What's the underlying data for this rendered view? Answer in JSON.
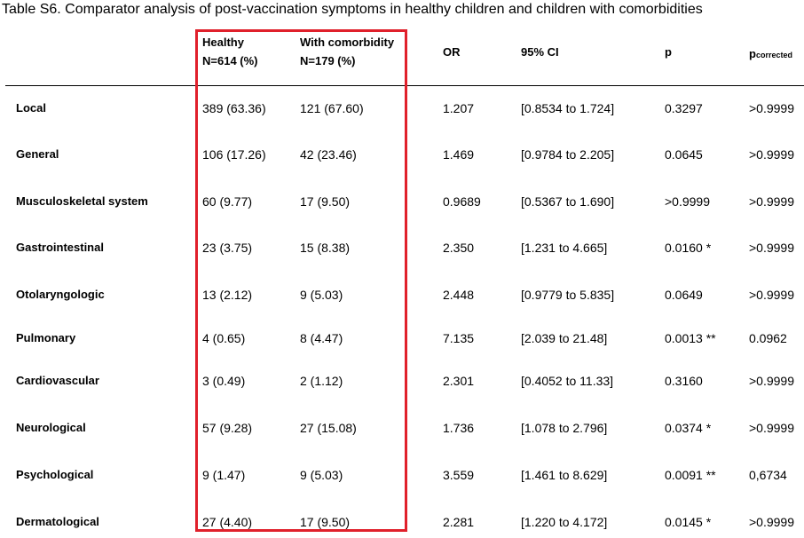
{
  "caption": {
    "label": "Table S6.",
    "text": " Comparator analysis of post-vaccination symptoms in healthy children and children with comorbidities"
  },
  "highlight": {
    "color": "#e0202b"
  },
  "columns": {
    "healthy": {
      "line1": "Healthy",
      "line2": "N=614 (%)"
    },
    "comorbidity": {
      "line1": "With comorbidity",
      "line2": "N=179 (%)"
    },
    "or": "OR",
    "ci": "95% CI",
    "p": "p",
    "pcorr_base": "p",
    "pcorr_sub": "corrected"
  },
  "rows": [
    {
      "label": "Local",
      "healthy": "389 (63.36)",
      "comorbidity": "121 (67.60)",
      "or": "1.207",
      "ci": "[0.8534 to 1.724]",
      "p": "0.3297",
      "pcorr": ">0.9999"
    },
    {
      "label": "General",
      "healthy": "106 (17.26)",
      "comorbidity": "42 (23.46)",
      "or": "1.469",
      "ci": "[0.9784 to 2.205]",
      "p": "0.0645",
      "pcorr": ">0.9999"
    },
    {
      "label": "Musculoskeletal system",
      "healthy": "60 (9.77)",
      "comorbidity": "17 (9.50)",
      "or": "0.9689",
      "ci": "[0.5367 to 1.690]",
      "p": ">0.9999",
      "pcorr": ">0.9999"
    },
    {
      "label": "Gastrointestinal",
      "healthy": "23 (3.75)",
      "comorbidity": "15 (8.38)",
      "or": "2.350",
      "ci": "[1.231 to 4.665]",
      "p": "0.0160 *",
      "pcorr": ">0.9999"
    },
    {
      "label": "Otolaryngologic",
      "healthy": "13 (2.12)",
      "comorbidity": "9 (5.03)",
      "or": "2.448",
      "ci": "[0.9779 to 5.835]",
      "p": "0.0649",
      "pcorr": ">0.9999"
    },
    {
      "label": "Pulmonary",
      "healthy": "4 (0.65)",
      "comorbidity": "8 (4.47)",
      "or": "7.135",
      "ci": "[2.039 to 21.48]",
      "p": "0.0013 **",
      "pcorr": "0.0962"
    },
    {
      "label": "Cardiovascular",
      "healthy": "3 (0.49)",
      "comorbidity": "2 (1.12)",
      "or": "2.301",
      "ci": "[0.4052 to 11.33]",
      "p": "0.3160",
      "pcorr": ">0.9999"
    },
    {
      "label": "Neurological",
      "healthy": "57 (9.28)",
      "comorbidity": "27 (15.08)",
      "or": "1.736",
      "ci": "[1.078 to 2.796]",
      "p": "0.0374 *",
      "pcorr": ">0.9999"
    },
    {
      "label": "Psychological",
      "healthy": "9 (1.47)",
      "comorbidity": "9 (5.03)",
      "or": "3.559",
      "ci": "[1.461 to 8.629]",
      "p": "0.0091 **",
      "pcorr": "0,6734"
    },
    {
      "label": "Dermatological",
      "healthy": "27 (4.40)",
      "comorbidity": "17 (9.50)",
      "or": "2.281",
      "ci": "[1.220 to 4.172]",
      "p": "0.0145 *",
      "pcorr": ">0.9999"
    }
  ]
}
